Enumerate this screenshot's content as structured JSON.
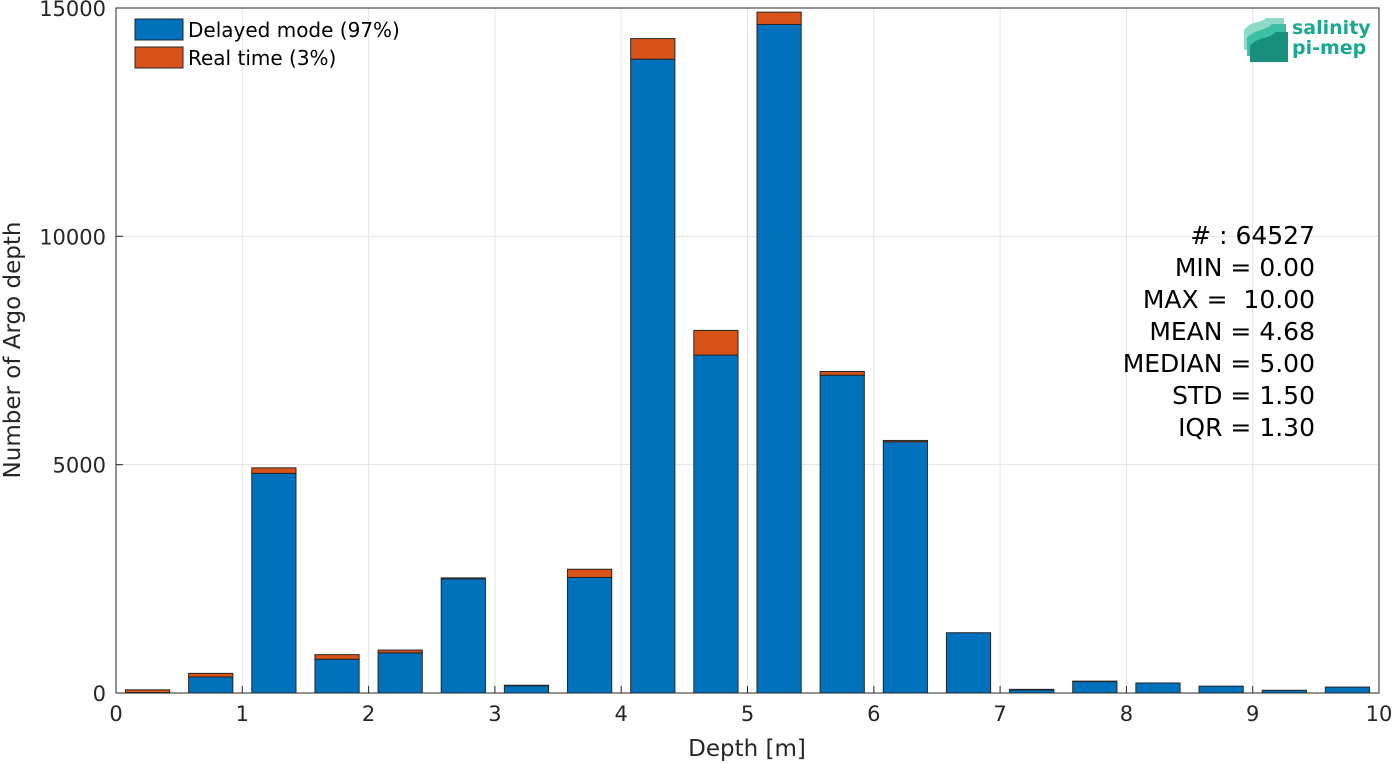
{
  "chart_data": {
    "type": "bar",
    "stacked": true,
    "x_centers": [
      0.25,
      0.75,
      1.25,
      1.75,
      2.25,
      2.75,
      3.25,
      3.75,
      4.25,
      4.75,
      5.25,
      5.75,
      6.25,
      6.75,
      7.25,
      7.75,
      8.25,
      8.75,
      9.25,
      9.75
    ],
    "bar_width": 0.35,
    "series": [
      {
        "name": "Delayed mode (97%)",
        "color": "#0072BD",
        "values": [
          10,
          350,
          4810,
          740,
          880,
          2500,
          160,
          2530,
          13880,
          7400,
          14640,
          6960,
          5500,
          1320,
          70,
          250,
          220,
          150,
          60,
          130
        ]
      },
      {
        "name": "Real time (3%)",
        "color": "#D95319",
        "values": [
          60,
          80,
          120,
          100,
          60,
          20,
          10,
          180,
          450,
          540,
          270,
          80,
          30,
          0,
          10,
          10,
          0,
          0,
          0,
          0
        ]
      }
    ],
    "xlabel": "Depth [m]",
    "ylabel": "Number of Argo depth",
    "xlim": [
      0,
      10
    ],
    "ylim": [
      0,
      15000
    ],
    "x_ticks": [
      "0",
      "1",
      "2",
      "3",
      "4",
      "5",
      "6",
      "7",
      "8",
      "9",
      "10"
    ],
    "y_ticks": [
      "0",
      "5000",
      "10000",
      "15000"
    ],
    "grid": true,
    "legend_placement": "top-left"
  },
  "stats": [
    "# : 64527",
    "MIN = 0.00",
    "MAX =  10.00",
    "MEAN = 4.68",
    "MEDIAN = 5.00",
    "STD = 1.50",
    "IQR = 1.30"
  ],
  "logo": {
    "line1": "salinity",
    "line2": "pi-mep"
  }
}
